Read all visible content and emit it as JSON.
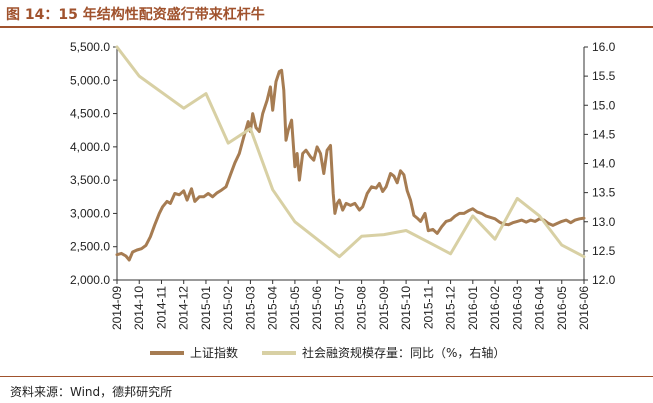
{
  "title": "图 14：15 年结构性配资盛行带来杠杆牛",
  "source": "资料来源：Wind，德邦研究所",
  "chart_data": {
    "type": "line",
    "title": "图 14：15 年结构性配资盛行带来杠杆牛",
    "categories": [
      "2014-09",
      "2014-10",
      "2014-11",
      "2014-12",
      "2015-01",
      "2015-02",
      "2015-03",
      "2015-04",
      "2015-05",
      "2015-06",
      "2015-07",
      "2015-08",
      "2015-09",
      "2015-10",
      "2015-11",
      "2015-12",
      "2016-01",
      "2016-02",
      "2016-03",
      "2016-04",
      "2016-05",
      "2016-06"
    ],
    "y_left": {
      "ticks": [
        "5,500.0",
        "5,000.0",
        "4,500.0",
        "4,000.0",
        "3,500.0",
        "3,000.0",
        "2,500.0",
        "2,000.0"
      ],
      "min": 2000,
      "max": 5500
    },
    "y_right": {
      "ticks": [
        "16.0",
        "15.5",
        "15.0",
        "14.5",
        "14.0",
        "13.5",
        "13.0",
        "12.5",
        "12.0"
      ],
      "min": 12.0,
      "max": 16.0
    },
    "series": [
      {
        "name": "上证指数",
        "axis": "left",
        "color": "#a67c52",
        "points": [
          [
            0.0,
            2380
          ],
          [
            0.2,
            2400
          ],
          [
            0.4,
            2360
          ],
          [
            0.55,
            2300
          ],
          [
            0.7,
            2420
          ],
          [
            0.9,
            2450
          ],
          [
            1.1,
            2470
          ],
          [
            1.3,
            2520
          ],
          [
            1.5,
            2650
          ],
          [
            1.7,
            2830
          ],
          [
            1.9,
            3000
          ],
          [
            2.05,
            3100
          ],
          [
            2.25,
            3180
          ],
          [
            2.4,
            3150
          ],
          [
            2.6,
            3300
          ],
          [
            2.8,
            3280
          ],
          [
            3.0,
            3340
          ],
          [
            3.15,
            3200
          ],
          [
            3.35,
            3370
          ],
          [
            3.5,
            3180
          ],
          [
            3.7,
            3250
          ],
          [
            3.9,
            3250
          ],
          [
            4.1,
            3300
          ],
          [
            4.3,
            3250
          ],
          [
            4.5,
            3310
          ],
          [
            4.7,
            3350
          ],
          [
            4.9,
            3400
          ],
          [
            5.1,
            3580
          ],
          [
            5.3,
            3760
          ],
          [
            5.5,
            3900
          ],
          [
            5.7,
            4150
          ],
          [
            5.9,
            4380
          ],
          [
            6.0,
            4230
          ],
          [
            6.1,
            4500
          ],
          [
            6.25,
            4290
          ],
          [
            6.4,
            4230
          ],
          [
            6.55,
            4500
          ],
          [
            6.75,
            4700
          ],
          [
            6.9,
            4900
          ],
          [
            7.0,
            4550
          ],
          [
            7.15,
            4980
          ],
          [
            7.3,
            5130
          ],
          [
            7.4,
            5150
          ],
          [
            7.5,
            4850
          ],
          [
            7.6,
            4100
          ],
          [
            7.7,
            4250
          ],
          [
            7.85,
            4400
          ],
          [
            8.0,
            3700
          ],
          [
            8.1,
            3900
          ],
          [
            8.2,
            3500
          ],
          [
            8.35,
            3900
          ],
          [
            8.5,
            3950
          ],
          [
            8.7,
            3850
          ],
          [
            8.85,
            3800
          ],
          [
            9.0,
            4000
          ],
          [
            9.15,
            3900
          ],
          [
            9.3,
            3600
          ],
          [
            9.45,
            3950
          ],
          [
            9.6,
            4020
          ],
          [
            9.72,
            3300
          ],
          [
            9.8,
            3000
          ],
          [
            9.9,
            3150
          ],
          [
            10.0,
            3200
          ],
          [
            10.15,
            3050
          ],
          [
            10.3,
            3150
          ],
          [
            10.5,
            3120
          ],
          [
            10.7,
            3150
          ],
          [
            10.9,
            3050
          ],
          [
            11.05,
            3100
          ],
          [
            11.25,
            3300
          ],
          [
            11.45,
            3400
          ],
          [
            11.65,
            3380
          ],
          [
            11.8,
            3450
          ],
          [
            11.95,
            3330
          ],
          [
            12.1,
            3400
          ],
          [
            12.3,
            3600
          ],
          [
            12.45,
            3560
          ],
          [
            12.6,
            3460
          ],
          [
            12.75,
            3640
          ],
          [
            12.9,
            3580
          ],
          [
            13.05,
            3340
          ],
          [
            13.2,
            3200
          ],
          [
            13.35,
            2970
          ],
          [
            13.5,
            2930
          ],
          [
            13.65,
            2880
          ],
          [
            13.85,
            3000
          ],
          [
            14.0,
            2740
          ],
          [
            14.2,
            2760
          ],
          [
            14.4,
            2700
          ],
          [
            14.6,
            2800
          ],
          [
            14.8,
            2880
          ],
          [
            15.0,
            2900
          ],
          [
            15.2,
            2960
          ],
          [
            15.4,
            3000
          ],
          [
            15.6,
            3000
          ],
          [
            15.8,
            3040
          ],
          [
            16.0,
            3070
          ],
          [
            16.2,
            3020
          ],
          [
            16.4,
            3000
          ],
          [
            16.6,
            2960
          ],
          [
            16.8,
            2940
          ],
          [
            17.0,
            2920
          ],
          [
            17.2,
            2870
          ],
          [
            17.4,
            2840
          ],
          [
            17.6,
            2830
          ],
          [
            17.8,
            2860
          ],
          [
            18.0,
            2880
          ],
          [
            18.2,
            2900
          ],
          [
            18.4,
            2870
          ],
          [
            18.6,
            2900
          ],
          [
            18.8,
            2880
          ],
          [
            19.0,
            2920
          ],
          [
            19.2,
            2900
          ],
          [
            19.4,
            2850
          ],
          [
            19.6,
            2820
          ],
          [
            19.8,
            2850
          ],
          [
            20.0,
            2880
          ],
          [
            20.2,
            2900
          ],
          [
            20.4,
            2860
          ],
          [
            20.6,
            2900
          ],
          [
            20.8,
            2920
          ],
          [
            21.0,
            2930
          ]
        ]
      },
      {
        "name": "社会融资规模存量：同比（%，右轴）",
        "axis": "right",
        "color": "#d8d0a4",
        "points": [
          [
            0.0,
            16.0
          ],
          [
            1.0,
            15.5
          ],
          [
            3.0,
            14.95
          ],
          [
            4.0,
            15.2
          ],
          [
            5.0,
            14.35
          ],
          [
            6.0,
            14.6
          ],
          [
            7.0,
            13.55
          ],
          [
            8.0,
            13.0
          ],
          [
            9.0,
            12.7
          ],
          [
            10.0,
            12.4
          ],
          [
            11.0,
            12.75
          ],
          [
            12.0,
            12.78
          ],
          [
            13.0,
            12.85
          ],
          [
            14.0,
            12.65
          ],
          [
            15.0,
            12.45
          ],
          [
            16.0,
            13.1
          ],
          [
            17.0,
            12.7
          ],
          [
            18.0,
            13.4
          ],
          [
            19.0,
            13.1
          ],
          [
            20.0,
            12.6
          ],
          [
            21.0,
            12.4
          ]
        ]
      }
    ]
  }
}
